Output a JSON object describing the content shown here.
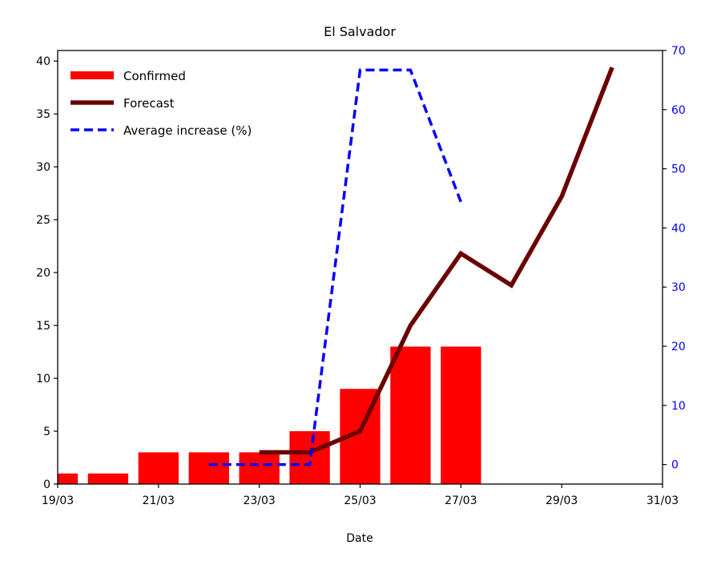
{
  "chart_data": {
    "type": "bar",
    "title": "El Salvador",
    "xlabel": "Date",
    "ylabel": "",
    "ylim": [
      0,
      41
    ],
    "y2lim": [
      -3.3,
      70
    ],
    "y_ticks": [
      0,
      5,
      10,
      15,
      20,
      25,
      30,
      35,
      40
    ],
    "y2_ticks": [
      0,
      10,
      20,
      30,
      40,
      50,
      60,
      70
    ],
    "x_ticks": [
      "19/03",
      "21/03",
      "23/03",
      "25/03",
      "27/03",
      "29/03",
      "31/03"
    ],
    "x_dates": [
      "19/03",
      "20/03",
      "21/03",
      "22/03",
      "23/03",
      "24/03",
      "25/03",
      "26/03",
      "27/03",
      "28/03",
      "29/03",
      "30/03",
      "31/03"
    ],
    "legend_position": "top-left",
    "grid": false,
    "series": [
      {
        "name": "Confirmed",
        "kind": "bar",
        "axis": "left",
        "color": "#ff0000",
        "x": [
          "19/03",
          "20/03",
          "21/03",
          "22/03",
          "23/03",
          "24/03",
          "25/03",
          "26/03",
          "27/03"
        ],
        "values": [
          1,
          1,
          3,
          3,
          3,
          5,
          9,
          13,
          13
        ]
      },
      {
        "name": "Forecast",
        "kind": "line",
        "axis": "left",
        "color": "#6b0000",
        "x": [
          "23/03",
          "24/03",
          "25/03",
          "26/03",
          "27/03",
          "28/03",
          "29/03",
          "30/03"
        ],
        "values": [
          3,
          3,
          5,
          15,
          21.8,
          18.8,
          27.2,
          39.4
        ]
      },
      {
        "name": "Average increase (%)",
        "kind": "dashed-line",
        "axis": "right",
        "color": "#0000ff",
        "x": [
          "22/03",
          "23/03",
          "24/03",
          "25/03",
          "26/03",
          "27/03"
        ],
        "values": [
          0,
          0,
          0,
          66.7,
          66.7,
          44.4
        ]
      }
    ]
  }
}
